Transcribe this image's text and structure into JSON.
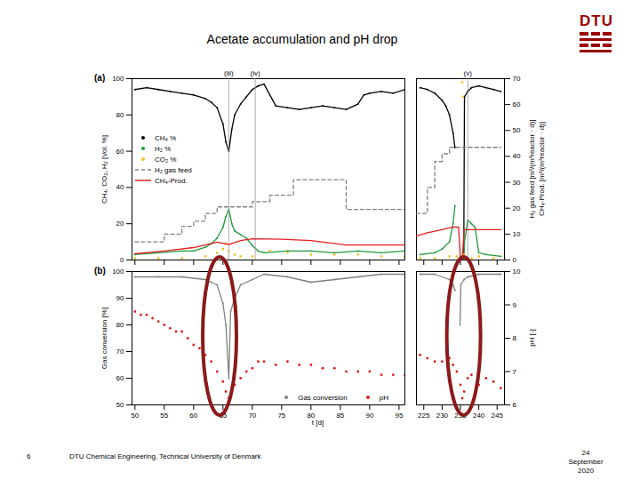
{
  "slide": {
    "title": "Acetate accumulation and pH drop",
    "logo": "DTU",
    "page_number": 6,
    "footer": "DTU Chemical Engineering, Technical University of Denmark",
    "date": "24 September 2020"
  },
  "chart_data": [
    {
      "type": "line",
      "panel_label": "(a)",
      "ylabel": "CH₄, CO₂, H₂ [Vol. %]",
      "y2label": [
        "H₂ gas feed [m³/(m³reactor · d)]",
        "CH₄-Prod. [m³/(m³reactor · d)]"
      ],
      "ylim": [
        0,
        100
      ],
      "yticks": [
        0,
        20,
        40,
        60,
        80,
        100
      ],
      "y2lim": [
        0,
        70
      ],
      "y2ticks": [
        0,
        10,
        20,
        30,
        40,
        50,
        60,
        70
      ],
      "x_segments": [
        {
          "xlim": [
            49.5,
            96
          ],
          "xticks": [
            50,
            55,
            60,
            65,
            70,
            75,
            80,
            85,
            90,
            95
          ]
        },
        {
          "xlim": [
            223,
            247
          ],
          "xticks": [
            225,
            230,
            235,
            240,
            245
          ]
        }
      ],
      "tick_labels": "y",
      "legend": "left",
      "annotations": [
        {
          "x": 66,
          "text": "(iii)"
        },
        {
          "x": 70.5,
          "text": "(iv)"
        },
        {
          "x": 237,
          "text": "(v)"
        }
      ],
      "series": [
        {
          "name": "CH₄ %",
          "color": "#000000",
          "type": "line",
          "marker": "dot",
          "x": [
            50,
            52,
            54,
            56,
            58,
            60,
            62,
            63,
            64,
            65,
            65.5,
            66,
            66.5,
            67,
            68,
            69,
            70,
            71,
            72,
            74,
            76,
            78,
            80,
            82,
            84,
            86,
            88,
            89,
            90,
            92,
            94,
            96,
            224,
            226,
            228,
            230,
            231,
            232,
            233,
            233.5,
            234,
            235.9,
            236.1,
            237,
            238,
            240,
            242,
            244,
            246
          ],
          "values": [
            94,
            95,
            94,
            93,
            92,
            91,
            89,
            87,
            84,
            75,
            65,
            60,
            72,
            80,
            86,
            90,
            94,
            96,
            97,
            85,
            84,
            83,
            84,
            85,
            84,
            83,
            86,
            91,
            92,
            93,
            92,
            94,
            95,
            94,
            92,
            88,
            85,
            80,
            70,
            62,
            null,
            0,
            90,
            93,
            95,
            96,
            95,
            94,
            93
          ]
        },
        {
          "name": "H₂ %",
          "color": "#1f9a3c",
          "type": "line",
          "marker": "dot",
          "x": [
            50,
            54,
            58,
            60,
            62,
            63,
            64,
            65,
            65.5,
            66,
            66.5,
            67,
            68,
            69,
            70,
            71,
            72,
            76,
            80,
            84,
            88,
            92,
            96,
            224,
            228,
            230,
            232,
            233,
            233.5,
            234,
            235.9,
            236.1,
            237,
            238,
            239,
            240,
            242,
            246
          ],
          "values": [
            3,
            4,
            5,
            5,
            7,
            9,
            12,
            18,
            24,
            28,
            20,
            16,
            14,
            12,
            8,
            5,
            4,
            5,
            5,
            4,
            5,
            4,
            5,
            3,
            4,
            6,
            10,
            20,
            30,
            null,
            0,
            10,
            22,
            20,
            18,
            4,
            3,
            2
          ]
        },
        {
          "name": "CO₂ %",
          "color": "#f2c12e",
          "type": "scatter",
          "marker": "dot",
          "x": [
            50,
            54,
            58,
            62,
            64,
            65,
            65.5,
            66,
            67,
            68,
            70,
            73,
            76,
            80,
            84,
            88,
            92,
            96,
            224,
            228,
            232,
            234,
            235.5,
            235.7,
            236,
            238,
            240,
            244
          ],
          "values": [
            1,
            1,
            1,
            2,
            4,
            6,
            9,
            5,
            3,
            2,
            2,
            5,
            4,
            3,
            3,
            3,
            2,
            2,
            1,
            1,
            2,
            2,
            98,
            90,
            3,
            1,
            2,
            1
          ]
        },
        {
          "name": "H₂ gas feed",
          "color": "#808080",
          "type": "step",
          "line_style": "dashed",
          "axis": "y2",
          "x": [
            50,
            55,
            58,
            60,
            62,
            64,
            70,
            73,
            77,
            86,
            96,
            223,
            226,
            228,
            230,
            232,
            246
          ],
          "values": [
            7,
            10,
            13,
            15,
            18,
            20.5,
            22.5,
            25,
            31,
            19.5,
            19.5,
            18,
            28,
            38,
            41,
            43.5,
            43.5
          ]
        },
        {
          "name": "CH₄-Prod.",
          "color": "#e02020",
          "type": "line",
          "axis": "y2",
          "x": [
            50,
            55,
            60,
            64,
            66,
            68,
            70,
            75,
            80,
            86,
            90,
            96,
            223,
            226,
            230,
            233,
            234.5,
            235,
            235.5,
            236,
            240,
            246
          ],
          "values": [
            2.4,
            3.5,
            4.8,
            6.9,
            6.0,
            7.5,
            8.2,
            8.0,
            7.5,
            5.8,
            5.8,
            5.8,
            9.3,
            10.5,
            11.7,
            12.7,
            12.7,
            0,
            0,
            11.7,
            11.7,
            11.7
          ]
        }
      ]
    },
    {
      "type": "line",
      "panel_label": "(b)",
      "xlabel": "t [d]",
      "ylabel": "Gas conversion [%]",
      "y2label": "pH [-]",
      "ylim": [
        50,
        100
      ],
      "yticks": [
        50,
        60,
        70,
        80,
        90,
        100
      ],
      "y2lim": [
        6,
        10
      ],
      "y2ticks": [
        6,
        7,
        8,
        9,
        10
      ],
      "x_segments": [
        {
          "xlim": [
            49.5,
            96
          ],
          "xticks": [
            50,
            55,
            60,
            65,
            70,
            75,
            80,
            85,
            90,
            95
          ]
        },
        {
          "xlim": [
            223,
            247
          ],
          "xticks": [
            225,
            230,
            235,
            240,
            245
          ]
        }
      ],
      "legend": "bottom-right",
      "highlights": [
        64.5,
        236
      ],
      "series": [
        {
          "name": "Gas conversion",
          "color": "#808080",
          "type": "line",
          "marker": "dot",
          "x": [
            50,
            54,
            58,
            62,
            63,
            64,
            65,
            65.5,
            66,
            66.3,
            67,
            68,
            70,
            72,
            76,
            80,
            84,
            88,
            92,
            96,
            224,
            228,
            232,
            233,
            233.5,
            234,
            234.9,
            235.1,
            236,
            237,
            240,
            246
          ],
          "values": [
            98,
            98,
            98,
            97,
            96,
            95,
            88,
            80,
            60,
            85,
            90,
            95,
            97,
            99,
            98,
            96,
            97,
            98,
            99,
            99,
            99,
            99,
            97,
            95,
            93,
            null,
            80,
            95,
            97,
            98,
            99,
            99
          ]
        },
        {
          "name": "pH",
          "color": "#e02020",
          "type": "scatter",
          "marker": "dot",
          "axis": "y2",
          "x": [
            50,
            51,
            52,
            53,
            54,
            55,
            56,
            57,
            58,
            59,
            60,
            61,
            62,
            63,
            64,
            65,
            65.5,
            66,
            66.5,
            67,
            68,
            69,
            70,
            71,
            72,
            74,
            76,
            78,
            80,
            82,
            84,
            86,
            88,
            90,
            92,
            94,
            96,
            224,
            226,
            228,
            230,
            232,
            233,
            234,
            235,
            235.5,
            236,
            237,
            238,
            240,
            242,
            244,
            246
          ],
          "values": [
            8.8,
            8.7,
            8.7,
            8.6,
            8.5,
            8.4,
            8.3,
            8.2,
            8.2,
            8.0,
            7.8,
            7.7,
            7.5,
            7.3,
            7.0,
            6.7,
            6.4,
            6.2,
            6.4,
            6.6,
            6.8,
            7.0,
            7.1,
            7.3,
            7.3,
            7.2,
            7.3,
            7.2,
            7.2,
            7.1,
            7.1,
            7.0,
            7.0,
            7.0,
            6.9,
            6.9,
            6.9,
            7.5,
            7.4,
            7.3,
            7.3,
            7.4,
            7.2,
            7.0,
            6.6,
            6.2,
            6.4,
            6.8,
            6.9,
            6.6,
            6.8,
            6.7,
            6.5
          ]
        }
      ]
    }
  ]
}
